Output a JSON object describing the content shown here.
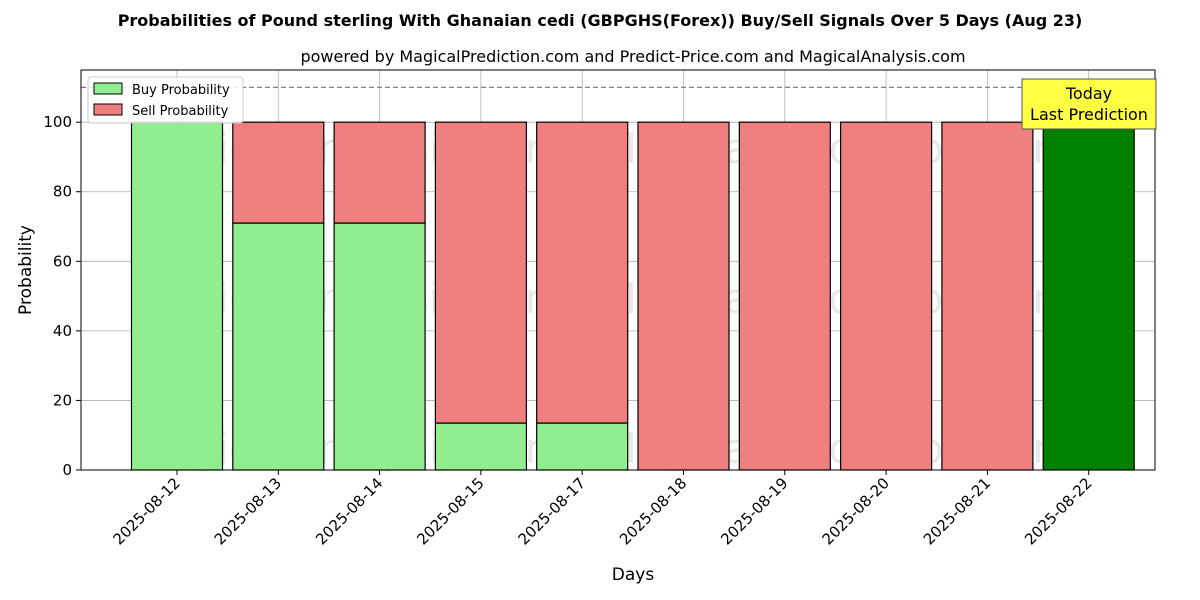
{
  "chart_data": {
    "type": "bar",
    "stacked": true,
    "title": "Probabilities of Pound sterling With Ghanaian cedi (GBPGHS(Forex)) Buy/Sell Signals Over 5 Days (Aug 23)",
    "subtitle": "powered by MagicalPrediction.com and Predict-Price.com and MagicalAnalysis.com",
    "xlabel": "Days",
    "ylabel": "Probability",
    "ylim": [
      0,
      115
    ],
    "yticks": [
      0,
      20,
      40,
      60,
      80,
      100
    ],
    "reference_line": 110,
    "grid": true,
    "legend_position": "top-left",
    "categories": [
      "2025-08-12",
      "2025-08-13",
      "2025-08-14",
      "2025-08-15",
      "2025-08-17",
      "2025-08-18",
      "2025-08-19",
      "2025-08-20",
      "2025-08-21",
      "2025-08-22"
    ],
    "series": [
      {
        "name": "Buy Probability",
        "color": "#90ee90",
        "values": [
          100,
          71,
          71,
          13.5,
          13.5,
          0,
          0,
          0,
          0,
          100
        ]
      },
      {
        "name": "Sell Probability",
        "color": "#f08080",
        "values": [
          0,
          29,
          29,
          86.5,
          86.5,
          100,
          100,
          100,
          100,
          0
        ]
      }
    ],
    "highlight": {
      "index": 9,
      "color": "#008000"
    },
    "annotation": {
      "line1": "Today",
      "line2": "Last Prediction",
      "color": "#ffff44"
    },
    "watermarks": [
      "MagicalAnalysis.com",
      "MagicalPrediction.com"
    ]
  }
}
